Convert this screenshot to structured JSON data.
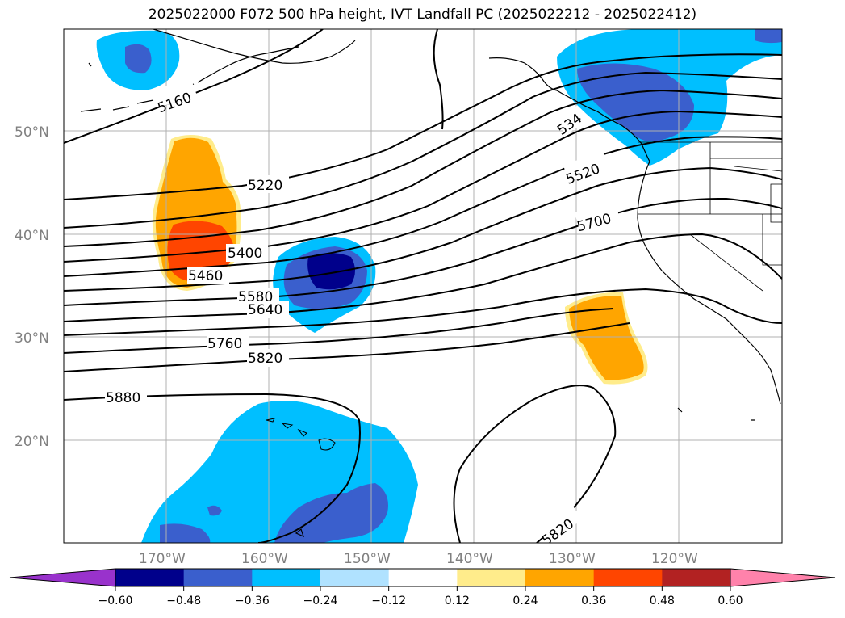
{
  "title": "2025022000 F072 500 hPa height, IVT Landfall PC (2025022212 - 2025022412)",
  "map": {
    "latitude_labels": [
      "50°N",
      "40°N",
      "30°N",
      "20°N"
    ],
    "longitude_labels": [
      "170°W",
      "160°W",
      "150°W",
      "140°W",
      "130°W",
      "120°W"
    ],
    "contour_labels": [
      "5160",
      "5220",
      "534",
      "5520",
      "5700",
      "5400",
      "5460",
      "5580",
      "5640",
      "5760",
      "5820",
      "5880",
      "5820"
    ]
  },
  "colorbar": {
    "tick_labels": [
      "−0.60",
      "−0.48",
      "−0.36",
      "−0.24",
      "−0.12",
      "0.12",
      "0.24",
      "0.36",
      "0.48",
      "0.60"
    ],
    "colors": [
      "#9932cc",
      "#00008b",
      "#3a5fcd",
      "#00bfff",
      "#b0e2ff",
      "#ffffff",
      "#ffec8b",
      "#ffa500",
      "#ff4500",
      "#b22222",
      "#ff82ab"
    ]
  }
}
